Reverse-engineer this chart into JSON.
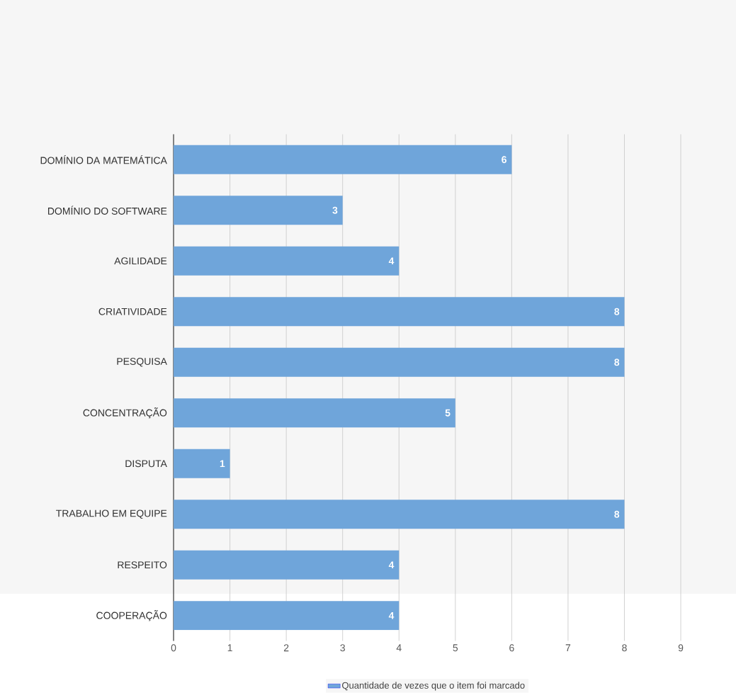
{
  "chart_data": {
    "type": "bar",
    "orientation": "horizontal",
    "categories": [
      "DOMÍNIO DA MATEMÁTICA",
      "DOMÍNIO DO SOFTWARE",
      "AGILIDADE",
      "CRIATIVIDADE",
      "PESQUISA",
      "CONCENTRAÇÃO",
      "DISPUTA",
      "TRABALHO EM EQUIPE",
      "RESPEITO",
      "COOPERAÇÃO"
    ],
    "series": [
      {
        "name": "Quantidade de vezes que o item foi marcado",
        "color": "#6fa5da",
        "values": [
          6,
          3,
          4,
          8,
          8,
          5,
          1,
          8,
          4,
          4
        ]
      }
    ],
    "xlim": [
      0,
      9
    ],
    "xticks": [
      0,
      1,
      2,
      3,
      4,
      5,
      6,
      7,
      8,
      9
    ],
    "grid": "x",
    "legend": "bottom",
    "data_labels": true
  }
}
